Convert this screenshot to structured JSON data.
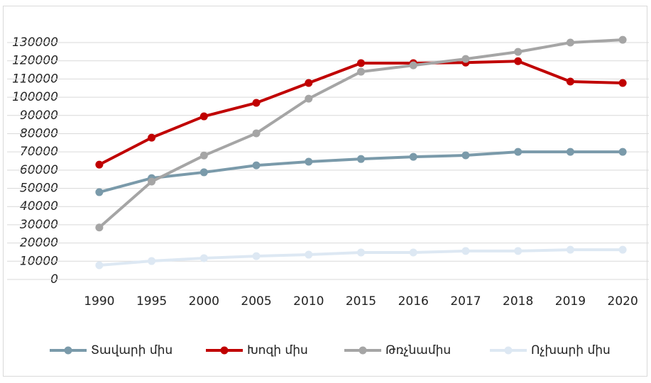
{
  "chart_data": {
    "type": "line",
    "categories": [
      "1990",
      "1995",
      "2000",
      "2005",
      "2010",
      "2015",
      "2016",
      "2017",
      "2018",
      "2019",
      "2020"
    ],
    "series": [
      {
        "name": "Տավարի միս",
        "color": "#7a9aaa",
        "values": [
          47900,
          55600,
          58800,
          62600,
          64600,
          66100,
          67300,
          68100,
          70000,
          70000,
          70000
        ]
      },
      {
        "name": "Խոզի միս",
        "color": "#c00000",
        "values": [
          63000,
          77800,
          89500,
          96900,
          107800,
          118700,
          118700,
          119000,
          119800,
          108600,
          107800
        ]
      },
      {
        "name": "Թռչնամիս",
        "color": "#a5a5a5",
        "values": [
          28500,
          53700,
          68000,
          80200,
          99200,
          114000,
          117500,
          121000,
          124900,
          130000,
          131500
        ]
      },
      {
        "name": "Ոչխարի միս",
        "color": "#dde8f3",
        "values": [
          7800,
          10100,
          11700,
          12800,
          13600,
          14800,
          14800,
          15600,
          15600,
          16300,
          16300
        ]
      }
    ],
    "ylim": [
      0,
      130000
    ],
    "yticks": [
      0,
      10000,
      20000,
      30000,
      40000,
      50000,
      60000,
      70000,
      80000,
      90000,
      100000,
      110000,
      120000,
      130000
    ],
    "grid": true,
    "legend": "bottom"
  }
}
